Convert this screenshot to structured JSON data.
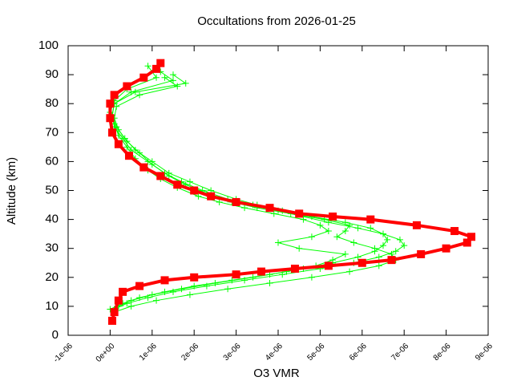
{
  "chart_data": {
    "type": "scatter",
    "title": "Occultations from 2026-01-25",
    "xlabel": "O3 VMR",
    "ylabel": "Altitude (km)",
    "xlim": [
      -1e-06,
      9e-06
    ],
    "ylim": [
      0,
      100
    ],
    "xticks": [
      {
        "value": -1e-06,
        "label": "-1e-06"
      },
      {
        "value": 0,
        "label": "0e+00"
      },
      {
        "value": 1e-06,
        "label": "1e-06"
      },
      {
        "value": 2e-06,
        "label": "2e-06"
      },
      {
        "value": 3e-06,
        "label": "3e-06"
      },
      {
        "value": 4e-06,
        "label": "4e-06"
      },
      {
        "value": 5e-06,
        "label": "5e-06"
      },
      {
        "value": 6e-06,
        "label": "6e-06"
      },
      {
        "value": 7e-06,
        "label": "7e-06"
      },
      {
        "value": 8e-06,
        "label": "8e-06"
      },
      {
        "value": 9e-06,
        "label": "9e-06"
      }
    ],
    "yticks": [
      0,
      10,
      20,
      30,
      40,
      50,
      60,
      70,
      80,
      90,
      100
    ],
    "grid": false,
    "series": [
      {
        "color": "#00ff00",
        "marker": "plus",
        "x": [
          1e-07,
          4e-07,
          9e-07,
          1.5e-06,
          2.3e-06,
          3.2e-06,
          4.1e-06,
          5e-06,
          5.8e-06,
          6.4e-06,
          6.8e-06,
          7e-06,
          6.9e-06,
          6.5e-06,
          5.9e-06,
          5.2e-06,
          4.6e-06,
          4e-06,
          3.4e-06,
          2.8e-06,
          2.2e-06,
          1.7e-06,
          1.3e-06,
          9e-07,
          5e-07,
          3e-07,
          1e-07,
          5e-08,
          1e-07,
          6e-07,
          1.8e-06,
          1.5e-06
        ],
        "values": [
          9,
          11,
          13,
          15,
          17,
          19,
          21,
          23,
          25,
          27,
          29,
          31,
          33,
          35,
          37,
          39,
          41,
          43,
          45,
          47,
          50,
          53,
          56,
          60,
          64,
          68,
          72,
          76,
          80,
          84,
          87,
          90
        ]
      },
      {
        "color": "#00ff00",
        "marker": "plus",
        "x": [
          0.0,
          3e-07,
          7e-07,
          1.3e-06,
          2e-06,
          2.9e-06,
          3.8e-06,
          4.6e-06,
          5.3e-06,
          5.9e-06,
          6.3e-06,
          6.5e-06,
          6.6e-06,
          6.5e-06,
          6.2e-06,
          5.6e-06,
          4.8e-06,
          4.1e-06,
          3.5e-06,
          3e-06,
          2.4e-06,
          1.9e-06,
          1.4e-06,
          1e-06,
          6e-07,
          3.5e-07,
          1.5e-07,
          5e-08,
          1e-07,
          5e-07,
          1.5e-06,
          1.2e-06
        ],
        "values": [
          9,
          11,
          13,
          15,
          17,
          19,
          21,
          23,
          25,
          27,
          29,
          31,
          33,
          35,
          37,
          39,
          41,
          43,
          45,
          47,
          50,
          53,
          56,
          60,
          64,
          68,
          72,
          76,
          80,
          84,
          88,
          91
        ]
      },
      {
        "color": "#00ff00",
        "marker": "plus",
        "x": [
          2e-07,
          5e-07,
          1e-06,
          1.7e-06,
          2.5e-06,
          3.4e-06,
          4.2e-06,
          4.9e-06,
          5.3e-06,
          5.6e-06,
          4.5e-06,
          4e-06,
          4.8e-06,
          5.2e-06,
          5e-06,
          4.6e-06,
          3.9e-06,
          3.2e-06,
          2.6e-06,
          2.1e-06,
          1.6e-06,
          1.2e-06,
          9e-07,
          6e-07,
          4e-07,
          2e-07,
          1e-07,
          0.0,
          1e-07,
          4e-07,
          1.1e-06,
          9e-07
        ],
        "values": [
          10,
          12,
          14,
          16,
          18,
          20,
          22,
          24,
          26,
          28,
          30,
          32,
          34,
          36,
          38,
          40,
          42,
          44,
          46,
          48,
          51,
          54,
          57,
          61,
          65,
          69,
          73,
          77,
          81,
          85,
          89,
          93
        ]
      },
      {
        "color": "#00ff00",
        "marker": "plus",
        "x": [
          1e-07,
          5e-07,
          1.1e-06,
          1.9e-06,
          2.8e-06,
          3.8e-06,
          4.8e-06,
          5.7e-06,
          6.4e-06,
          6.8e-06,
          6.7e-06,
          6.3e-06,
          5.8e-06,
          5.4e-06,
          5.6e-06,
          5.7e-06,
          5.1e-06,
          4.3e-06,
          3.5e-06,
          2.9e-06,
          2.3e-06,
          1.8e-06,
          1.4e-06,
          1e-06,
          7e-07,
          4e-07,
          2e-07,
          1e-07,
          1.5e-07,
          7e-07,
          1.6e-06,
          1.3e-06
        ],
        "values": [
          8,
          10,
          12,
          14,
          16,
          18,
          20,
          22,
          24,
          26,
          28,
          30,
          32,
          34,
          36,
          38,
          40,
          42,
          44,
          46,
          49,
          52,
          55,
          59,
          63,
          67,
          71,
          75,
          79,
          83,
          86,
          89
        ]
      },
      {
        "color": "#ff0000",
        "marker": "square",
        "x": [
          5e-08,
          1e-07,
          2e-07,
          3e-07,
          7e-07,
          1.3e-06,
          2e-06,
          3e-06,
          3.6e-06,
          4.4e-06,
          5.2e-06,
          6e-06,
          6.7e-06,
          7.4e-06,
          8e-06,
          8.5e-06,
          8.6e-06,
          8.2e-06,
          7.3e-06,
          6.2e-06,
          5.3e-06,
          4.5e-06,
          3.8e-06,
          3e-06,
          2.4e-06,
          2e-06,
          1.6e-06,
          1.2e-06,
          8e-07,
          4.5e-07,
          2e-07,
          5e-08,
          0.0,
          0.0,
          1e-07,
          4e-07,
          8e-07,
          1.1e-06,
          1.2e-06
        ],
        "values": [
          5,
          8,
          12,
          15,
          17,
          19,
          20,
          21,
          22,
          23,
          24,
          25,
          26,
          28,
          30,
          32,
          34,
          36,
          38,
          40,
          41,
          42,
          44,
          46,
          48,
          50,
          52,
          55,
          58,
          62,
          66,
          70,
          75,
          80,
          83,
          86,
          89,
          92,
          94
        ]
      }
    ]
  }
}
